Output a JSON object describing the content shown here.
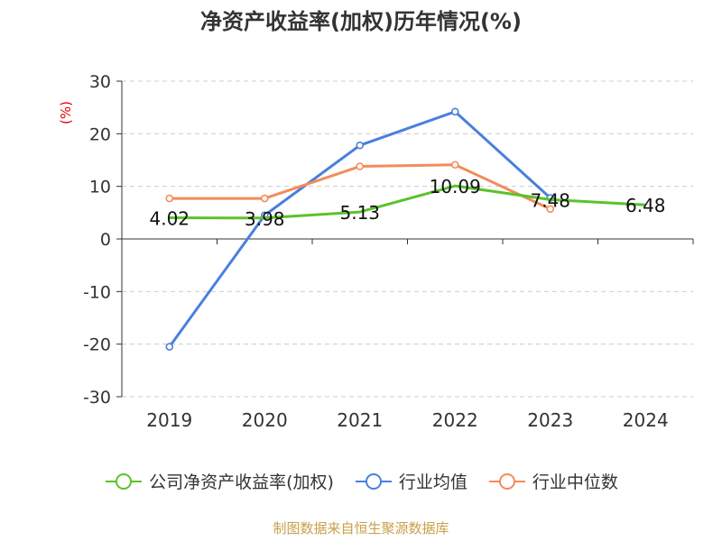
{
  "title": "净资产收益率(加权)历年情况(%)",
  "source": "制图数据来自恒生聚源数据库",
  "colors": {
    "company": "#5bc22b",
    "industry_mean": "#4a7fdc",
    "industry_median": "#f28c5a",
    "unit_label": "#e60000",
    "grid": "#cccccc",
    "axis": "#333333",
    "title": "#333333",
    "source": "#c8a04a"
  },
  "chart_data": {
    "type": "line",
    "title": "净资产收益率(加权)历年情况(%)",
    "ylabel": "(%)",
    "xlabel": "",
    "categories": [
      "2019",
      "2020",
      "2021",
      "2022",
      "2023",
      "2024"
    ],
    "ylim": [
      -30,
      30
    ],
    "yticks": [
      30,
      20,
      10,
      0,
      -10,
      -20,
      -30
    ],
    "grid": true,
    "legend_position": "bottom",
    "series": [
      {
        "name": "公司净资产收益率(加权)",
        "key": "company",
        "values": [
          4.02,
          3.98,
          5.13,
          10.09,
          7.48,
          6.48
        ],
        "labels": [
          "4.02",
          "3.98",
          "5.13",
          "10.09",
          "7.48",
          "6.48"
        ]
      },
      {
        "name": "行业均值",
        "key": "industry_mean",
        "values": [
          -20.5,
          4.5,
          17.8,
          24.2,
          7.8,
          null
        ]
      },
      {
        "name": "行业中位数",
        "key": "industry_median",
        "values": [
          7.7,
          7.7,
          13.8,
          14.1,
          5.7,
          null
        ]
      }
    ]
  }
}
